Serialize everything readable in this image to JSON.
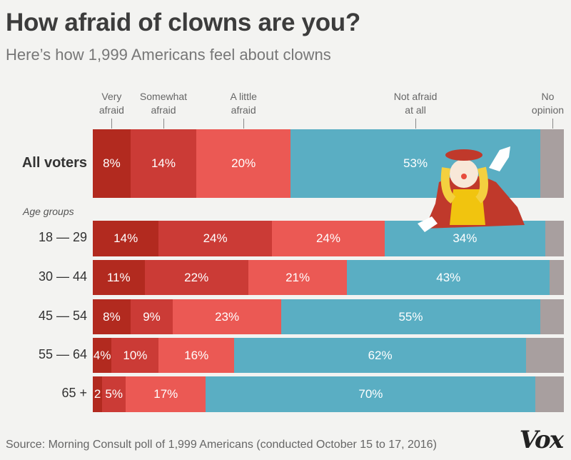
{
  "title": "How afraid of clowns are you?",
  "subtitle": "Here’s how 1,999 Americans feel about clowns",
  "age_groups_label": "Age groups",
  "source": "Source: Morning Consult poll of 1,999 Americans (conducted October 15 to 17, 2016)",
  "logo": "Vox",
  "chart_data": {
    "type": "bar",
    "orientation": "horizontal-stacked-100",
    "categories": [
      "All voters",
      "18 — 29",
      "30 — 44",
      "45 — 54",
      "55 — 64",
      "65 +"
    ],
    "series": [
      {
        "name": "Very\nafraid",
        "color": "#b22a1f",
        "values": [
          8,
          14,
          11,
          8,
          4,
          2
        ],
        "labels": [
          "8%",
          "14%",
          "11%",
          "8%",
          "4%",
          "2"
        ]
      },
      {
        "name": "Somewhat\nafraid",
        "color": "#cb3b36",
        "values": [
          14,
          24,
          22,
          9,
          10,
          5
        ],
        "labels": [
          "14%",
          "24%",
          "22%",
          "9%",
          "10%",
          "5%"
        ]
      },
      {
        "name": "A little\nafraid",
        "color": "#eb5954",
        "values": [
          20,
          24,
          21,
          23,
          16,
          17
        ],
        "labels": [
          "20%",
          "24%",
          "21%",
          "23%",
          "16%",
          "17%"
        ]
      },
      {
        "name": "Not afraid\nat all",
        "color": "#5aaec3",
        "values": [
          53,
          34,
          43,
          55,
          62,
          70
        ],
        "labels": [
          "53%",
          "34%",
          "43%",
          "55%",
          "62%",
          "70%"
        ]
      },
      {
        "name": "No\nopinion",
        "color": "#a89f9f",
        "values": [
          5,
          4,
          3,
          5,
          8,
          6
        ],
        "labels": [
          "",
          "",
          "",
          "",
          "",
          ""
        ]
      }
    ]
  }
}
